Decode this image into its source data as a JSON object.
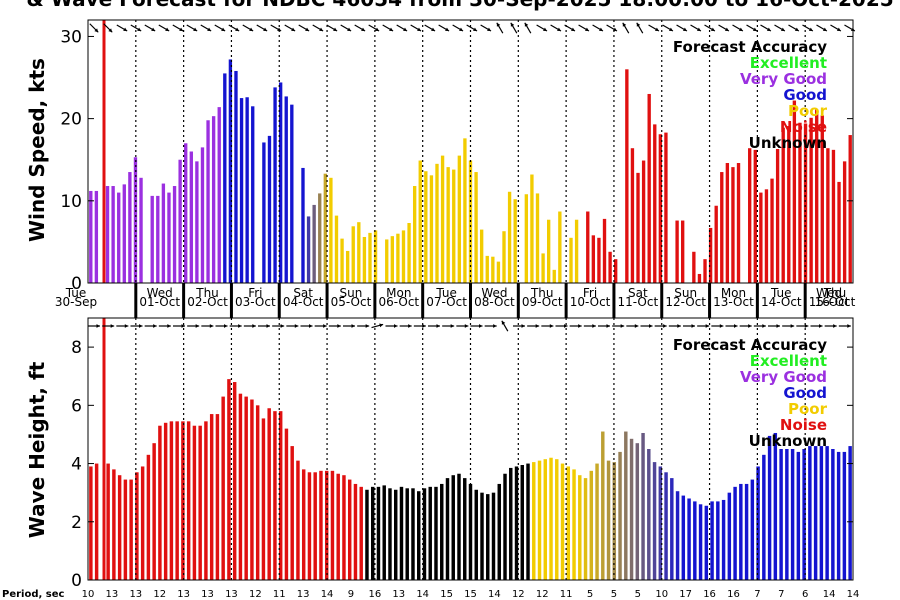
{
  "chart_data": {
    "type": "bar",
    "title": "& Wave Forecast for NDBC 46054 from 30-Sep-2025 18:00:00 to 16-Oct-2025",
    "legend": {
      "title": "Forecast Accuracy",
      "entries": [
        {
          "label": "Excellent",
          "color": "#22ee22"
        },
        {
          "label": "Very Good",
          "color": "#9b30e0"
        },
        {
          "label": "Good",
          "color": "#1414d0"
        },
        {
          "label": "Poor",
          "color": "#f2cc00"
        },
        {
          "label": "Noise",
          "color": "#e01010"
        },
        {
          "label": "Unknown",
          "color": "#000000"
        }
      ],
      "placement": "top-right"
    },
    "colors": {
      "verygood": "#9b30e0",
      "good": "#1414d0",
      "poor": "#f2cc00",
      "noise": "#e01010",
      "current_time_line": "#e01010"
    },
    "days": [
      {
        "dow": "Tue",
        "date": "30-Sep"
      },
      {
        "dow": "Wed",
        "date": "01-Oct"
      },
      {
        "dow": "Thu",
        "date": "02-Oct"
      },
      {
        "dow": "Fri",
        "date": "03-Oct"
      },
      {
        "dow": "Sat",
        "date": "04-Oct"
      },
      {
        "dow": "Sun",
        "date": "05-Oct"
      },
      {
        "dow": "Mon",
        "date": "06-Oct"
      },
      {
        "dow": "Tue",
        "date": "07-Oct"
      },
      {
        "dow": "Wed",
        "date": "08-Oct"
      },
      {
        "dow": "Thu",
        "date": "09-Oct"
      },
      {
        "dow": "Fri",
        "date": "10-Oct"
      },
      {
        "dow": "Sat",
        "date": "11-Oct"
      },
      {
        "dow": "Sun",
        "date": "12-Oct"
      },
      {
        "dow": "Mon",
        "date": "13-Oct"
      },
      {
        "dow": "Tue",
        "date": "14-Oct"
      },
      {
        "dow": "Wed",
        "date": "15-Oct"
      },
      {
        "dow": "Thu",
        "date": "16-Oct"
      }
    ],
    "wind": {
      "ylabel": "Wind Speed, kts",
      "ylim": [
        0,
        32
      ],
      "yticks": [
        0,
        10,
        20,
        30
      ],
      "values": [
        11.2,
        11.2,
        0,
        11.8,
        11.8,
        11,
        12,
        13.5,
        15.3,
        12.8,
        0,
        10.6,
        10.6,
        12.1,
        11,
        11.8,
        15,
        17,
        16,
        14.8,
        16.5,
        19.8,
        20.3,
        21.4,
        25.5,
        27.2,
        25.8,
        22.5,
        22.6,
        21.5,
        0,
        17.1,
        17.9,
        23.8,
        24.4,
        22.7,
        21.7,
        0,
        14,
        8.1,
        9.5,
        10.9,
        13.3,
        12.8,
        8.2,
        5.4,
        3.9,
        6.9,
        7.4,
        5.6,
        6.1,
        6.4,
        0,
        5.3,
        5.7,
        6,
        6.4,
        7.3,
        11.8,
        14.9,
        13.6,
        13.1,
        14.5,
        15.5,
        14.1,
        13.8,
        15.5,
        17.6,
        14.9,
        13.5,
        6.5,
        3.3,
        3.2,
        2.6,
        6.3,
        11.1,
        10.2,
        0,
        10.8,
        13.2,
        10.9,
        3.6,
        7.7,
        1.6,
        8.7,
        0,
        5.5,
        7.7,
        0,
        8.7,
        5.8,
        5.5,
        7.8,
        3.8,
        2.9,
        0,
        26,
        16.4,
        13.4,
        14.9,
        23,
        19.3,
        18.1,
        18.3,
        0,
        7.6,
        7.6,
        0,
        3.8,
        1.1,
        2.9,
        6.7,
        9.4,
        13.5,
        14.6,
        14.1,
        14.6,
        0,
        16.4,
        16.2,
        11,
        11.4,
        12.7,
        16.3,
        18.9,
        19.1,
        22.2,
        19.5,
        19.4,
        20.1,
        21.1,
        20.4,
        16.4,
        16.2,
        12.3,
        14.8,
        18
      ],
      "quality": [
        "V",
        "V",
        "V",
        "V",
        "V",
        "V",
        "V",
        "V",
        "V",
        "V",
        "V",
        "V",
        "V",
        "V",
        "V",
        "V",
        "V",
        "V",
        "V",
        "V",
        "V",
        "V",
        "V",
        "V",
        "G",
        "G",
        "G",
        "G",
        "G",
        "G",
        "G",
        "G",
        "G",
        "G",
        "G",
        "G",
        "G",
        "G",
        "G",
        "M1",
        "M2",
        "M3",
        "M4",
        "P",
        "P",
        "P",
        "P",
        "P",
        "P",
        "P",
        "P",
        "P",
        "P",
        "P",
        "P",
        "P",
        "P",
        "P",
        "P",
        "P",
        "P",
        "P",
        "P",
        "P",
        "P",
        "P",
        "P",
        "P",
        "P",
        "P",
        "P",
        "P",
        "P",
        "P",
        "P",
        "P",
        "P",
        "P",
        "P",
        "P",
        "P",
        "P",
        "P",
        "P",
        "P",
        "P",
        "P",
        "P",
        "N",
        "N",
        "N",
        "N",
        "N",
        "N",
        "N",
        "N",
        "N",
        "N",
        "N",
        "N",
        "N",
        "N",
        "N",
        "N",
        "N",
        "N",
        "N",
        "N",
        "N",
        "N",
        "N",
        "N",
        "N",
        "N",
        "N",
        "N",
        "N",
        "N",
        "N",
        "N",
        "N",
        "N",
        "N",
        "N",
        "N",
        "N",
        "N",
        "N",
        "N",
        "N",
        "N",
        "N",
        "N",
        "N",
        "N",
        "N",
        "N",
        "N",
        "N"
      ],
      "arrow_angles": [
        45,
        45,
        45,
        45,
        45,
        45,
        30,
        30,
        30,
        30,
        30,
        30,
        30,
        30,
        30,
        30,
        30,
        30,
        30,
        30,
        30,
        30,
        30,
        30,
        30,
        30,
        30,
        30,
        30,
        30,
        30,
        30,
        30,
        30,
        30,
        30,
        30,
        30,
        30,
        30,
        30,
        30,
        30,
        30,
        30,
        30,
        30,
        30,
        30,
        30,
        30,
        30,
        30,
        30,
        30,
        30,
        30,
        30,
        30,
        30,
        30,
        30,
        30,
        30,
        30,
        30,
        30,
        30,
        30,
        30,
        30,
        30,
        30,
        30,
        30,
        30,
        30,
        30,
        30,
        30,
        30,
        30,
        30,
        30,
        30,
        30,
        30,
        -120,
        -120,
        -120,
        -120,
        -120,
        -120,
        -120,
        -120,
        30,
        30,
        30,
        30,
        30,
        30,
        30,
        30,
        30,
        30,
        30,
        30,
        30,
        30,
        30,
        30,
        30,
        -120,
        -120,
        -120,
        -120,
        -120,
        -120,
        -120,
        -120,
        30,
        30,
        30,
        30,
        30,
        30,
        30,
        30,
        30,
        30,
        30,
        30,
        30,
        30,
        30,
        30,
        30,
        30,
        30,
        30,
        30,
        30,
        30,
        30,
        30,
        30,
        30,
        30,
        30,
        30,
        30,
        30,
        30,
        30,
        30,
        30,
        30,
        30,
        30,
        30,
        30,
        30,
        30,
        30
      ]
    },
    "wave": {
      "ylabel": "Wave Height, ft",
      "ylim": [
        0,
        9
      ],
      "yticks": [
        0,
        2,
        4,
        6,
        8
      ],
      "values": [
        3.9,
        4,
        0,
        4,
        3.8,
        3.6,
        3.45,
        3.45,
        3.7,
        3.9,
        4.3,
        4.7,
        5.3,
        5.4,
        5.45,
        5.45,
        5.45,
        5.45,
        5.3,
        5.3,
        5.45,
        5.7,
        5.7,
        6.3,
        6.9,
        6.8,
        6.4,
        6.3,
        6.2,
        6,
        5.55,
        5.9,
        5.8,
        5.8,
        5.2,
        4.6,
        4.1,
        3.8,
        3.7,
        3.7,
        3.75,
        3.75,
        3.75,
        3.65,
        3.6,
        3.45,
        3.3,
        3.2,
        3.1,
        3.2,
        3.2,
        3.25,
        3.15,
        3.1,
        3.2,
        3.15,
        3.15,
        3.05,
        3.15,
        3.2,
        3.2,
        3.3,
        3.5,
        3.6,
        3.65,
        3.5,
        3.3,
        3.1,
        3,
        2.95,
        3,
        3.3,
        3.65,
        3.85,
        3.9,
        3.95,
        4,
        4.05,
        4.1,
        4.15,
        4.2,
        4.15,
        4,
        3.9,
        3.8,
        3.6,
        3.5,
        3.75,
        4,
        5.1,
        4.1,
        4.05,
        4.4,
        5.1,
        4.85,
        4.7,
        5.05,
        4.5,
        4.05,
        3.9,
        3.7,
        3.5,
        3.05,
        2.9,
        2.8,
        2.7,
        2.6,
        2.55,
        2.7,
        2.7,
        2.75,
        3,
        3.2,
        3.3,
        3.3,
        3.45,
        3.9,
        4.3,
        4.95,
        5.05,
        4.5,
        4.5,
        4.5,
        4.4,
        4.5,
        4.6,
        4.6,
        4.6,
        4.6,
        4.5,
        4.4,
        4.4,
        4.6
      ],
      "arrow_angles": [
        0,
        0,
        0,
        0,
        0,
        0,
        0,
        0,
        0,
        0,
        0,
        0,
        0,
        0,
        0,
        0,
        0,
        0,
        0,
        0,
        0,
        0,
        0,
        0,
        0,
        0,
        0,
        0,
        0,
        0,
        0,
        0,
        0,
        0,
        0,
        0,
        0,
        0,
        0,
        0,
        0,
        0,
        0,
        0,
        0,
        0,
        0,
        0,
        0,
        0,
        0,
        0,
        0,
        0,
        0,
        0,
        0,
        0,
        0,
        0,
        -15,
        0,
        0,
        0,
        0,
        0,
        0,
        -30,
        0,
        0,
        0,
        0,
        0,
        0,
        0,
        0,
        0,
        0,
        0,
        0,
        -90,
        0,
        0,
        0,
        0,
        0,
        0,
        -120,
        0,
        0,
        0,
        0,
        0,
        0,
        0,
        0,
        0,
        -45,
        0,
        0,
        0,
        0,
        0,
        0,
        0,
        0,
        0,
        0,
        0,
        0,
        0,
        0,
        -30,
        0,
        0,
        0,
        0,
        0,
        0,
        -90,
        0,
        0,
        0,
        0,
        0,
        0,
        0,
        0,
        0,
        0,
        0,
        0,
        0,
        0,
        0,
        0,
        0,
        0,
        0,
        0,
        0,
        0,
        0,
        0,
        0,
        0,
        0,
        0,
        0,
        0,
        0,
        0,
        0,
        0,
        0,
        0,
        0,
        0,
        0,
        0,
        0,
        0
      ]
    },
    "period": {
      "label": "Period, sec",
      "values": [
        "10",
        "13",
        "13",
        "12",
        "13",
        "13",
        "13",
        "12",
        "11",
        "13",
        "14",
        "9",
        "16",
        "13",
        "14",
        "15",
        "15",
        "14",
        "12",
        "12",
        "11",
        "5",
        "5",
        "5",
        "10",
        "17",
        "16",
        "16",
        "7",
        "7",
        "6",
        "14",
        "14"
      ]
    }
  }
}
